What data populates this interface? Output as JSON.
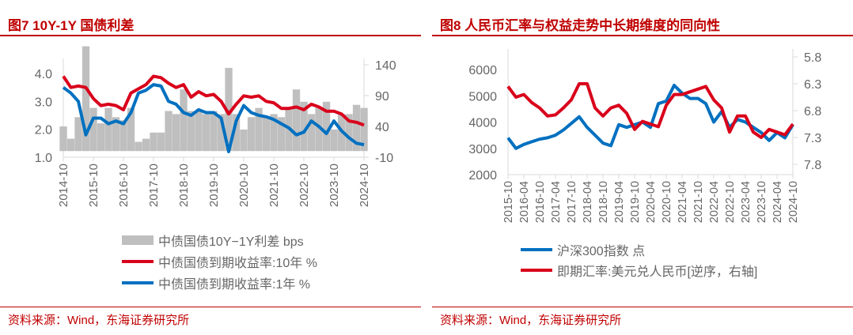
{
  "colors": {
    "accent": "#c00000",
    "red": "#d9001b",
    "blue": "#0070c0",
    "gray": "#bfbfbf"
  },
  "left": {
    "title": "图7   10Y-1Y 国债利差",
    "source": "资料来源：Wind，东海证券研究所"
  },
  "right": {
    "title": "图8   人民币汇率与权益走势中长期维度的同向性",
    "source": "资料来源：Wind，东海证券研究所"
  },
  "chart_data": [
    {
      "type": "line",
      "x_start": "2014-10",
      "x_end": "2024-10",
      "x_step": "quarter",
      "xticks": [
        "2014-10",
        "2015-10",
        "2016-10",
        "2017-10",
        "2018-10",
        "2019-10",
        "2020-10",
        "2021-10",
        "2022-10",
        "2023-10",
        "2024-10"
      ],
      "ylim": [
        1.0,
        4.3
      ],
      "yticks": [
        "1.0",
        "2.0",
        "3.0",
        "4.0"
      ],
      "y2lim": [
        -10,
        150
      ],
      "y2ticks": [
        "-10",
        "40",
        "90",
        "140"
      ],
      "legend": [
        "中债国债10Y−1Y利差 bps",
        "中债国债到期收益率:10年 %",
        "中债国债到期收益率:1年 %"
      ],
      "series": [
        {
          "name": "中债国债10Y−1Y利差 bps",
          "axis": "right",
          "kind": "area",
          "values": [
            40,
            20,
            55,
            170,
            70,
            45,
            70,
            55,
            50,
            70,
            15,
            20,
            30,
            30,
            65,
            60,
            100,
            65,
            65,
            60,
            65,
            60,
            135,
            60,
            35,
            55,
            70,
            55,
            60,
            55,
            70,
            100,
            80,
            60,
            70,
            80,
            35,
            60,
            60,
            75,
            70
          ]
        },
        {
          "name": "中债国债到期收益率:10年 %",
          "axis": "left",
          "values": [
            3.9,
            3.5,
            3.55,
            3.5,
            3.1,
            2.85,
            2.9,
            2.85,
            2.7,
            3.3,
            3.45,
            3.6,
            3.9,
            3.85,
            3.65,
            3.5,
            3.6,
            3.15,
            3.35,
            3.2,
            3.25,
            3.0,
            2.55,
            2.9,
            3.2,
            3.15,
            3.2,
            3.0,
            2.95,
            2.75,
            2.75,
            2.8,
            2.7,
            2.9,
            2.8,
            2.65,
            2.65,
            2.55,
            2.3,
            2.25,
            2.15
          ]
        },
        {
          "name": "中债国债到期收益率:1年 %",
          "axis": "left",
          "values": [
            3.5,
            3.3,
            3.0,
            1.8,
            2.4,
            2.4,
            2.2,
            2.3,
            2.2,
            2.6,
            3.3,
            3.4,
            3.6,
            3.55,
            3.0,
            2.9,
            2.6,
            2.5,
            2.7,
            2.6,
            2.6,
            2.4,
            1.2,
            2.3,
            2.85,
            2.6,
            2.5,
            2.45,
            2.35,
            2.2,
            2.05,
            1.8,
            1.9,
            2.3,
            2.1,
            1.85,
            2.3,
            1.95,
            1.7,
            1.5,
            1.45
          ]
        }
      ]
    },
    {
      "type": "line",
      "x_start": "2015-10",
      "x_end": "2024-10",
      "x_step": "quarter",
      "xticks": [
        "2015-10",
        "2016-04",
        "2016-10",
        "2017-04",
        "2017-10",
        "2018-04",
        "2018-10",
        "2019-04",
        "2019-10",
        "2020-04",
        "2020-10",
        "2021-04",
        "2021-10",
        "2022-04",
        "2022-10",
        "2023-04",
        "2023-10",
        "2024-04",
        "2024-10"
      ],
      "ylim": [
        2000,
        6000
      ],
      "yticks": [
        "2000",
        "3000",
        "4000",
        "5000",
        "6000"
      ],
      "y2lim": [
        5.8,
        7.8
      ],
      "y2_reversed": true,
      "y2ticks": [
        "5.8",
        "6.3",
        "6.8",
        "7.3",
        "7.8"
      ],
      "legend": [
        "沪深300指数 点",
        "即期汇率:美元兑人民币[逆序，右轴]"
      ],
      "series": [
        {
          "name": "沪深300指数 点",
          "axis": "left",
          "values": [
            3400,
            3000,
            3150,
            3250,
            3350,
            3400,
            3500,
            3700,
            3950,
            4200,
            3800,
            3500,
            3200,
            3100,
            3900,
            3800,
            3900,
            4000,
            3800,
            4700,
            4800,
            5400,
            5100,
            4900,
            4900,
            4700,
            4000,
            4400,
            3800,
            4100,
            4000,
            3800,
            3600,
            3300,
            3600,
            3400,
            3900
          ]
        },
        {
          "name": "即期汇率:美元兑人民币[逆序，右轴]",
          "axis": "right",
          "values": [
            6.35,
            6.55,
            6.5,
            6.65,
            6.75,
            6.9,
            6.88,
            6.75,
            6.6,
            6.3,
            6.3,
            6.75,
            6.9,
            6.75,
            6.7,
            6.85,
            7.15,
            7.0,
            7.05,
            7.1,
            6.7,
            6.5,
            6.5,
            6.45,
            6.4,
            6.35,
            6.6,
            6.75,
            7.2,
            6.9,
            6.9,
            7.2,
            7.3,
            7.15,
            7.2,
            7.25,
            7.05
          ]
        }
      ]
    }
  ]
}
